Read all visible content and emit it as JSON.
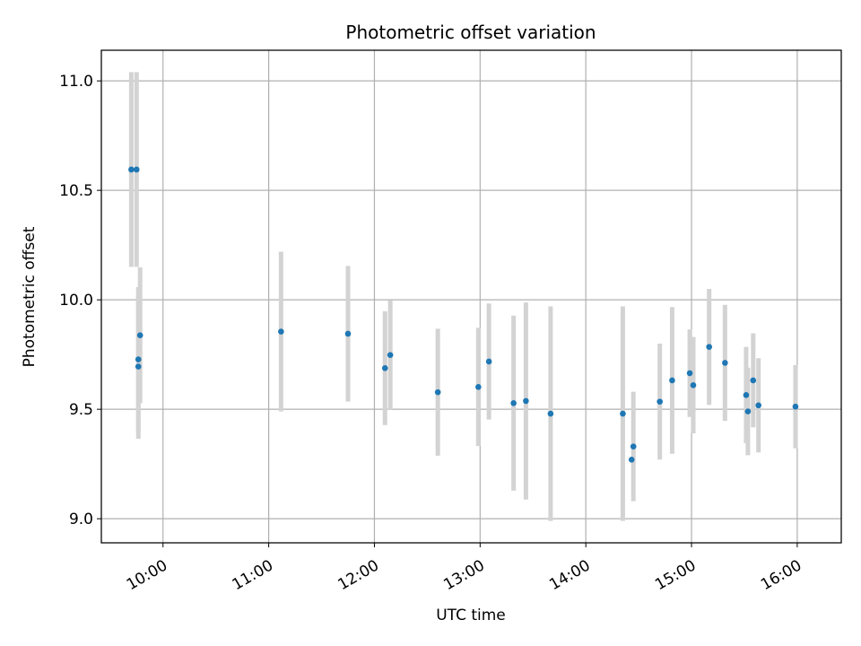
{
  "chart_data": {
    "type": "scatter",
    "title": "Photometric offset variation",
    "xlabel": "UTC time",
    "ylabel": "Photometric offset",
    "x_tick_labels": [
      "10:00",
      "11:00",
      "12:00",
      "13:00",
      "14:00",
      "15:00",
      "16:00"
    ],
    "y_tick_labels": [
      "9.0",
      "9.5",
      "10.0",
      "10.5",
      "11.0"
    ],
    "xlim": [
      "09:25",
      "16:25"
    ],
    "ylim": [
      8.89,
      11.14
    ],
    "grid": true,
    "colors": {
      "points": "#1f77b4",
      "errorbars": "#d3d3d3",
      "grid": "#b0b0b0"
    },
    "points": [
      {
        "x": "09:42",
        "y": 10.595,
        "err": 0.445
      },
      {
        "x": "09:45",
        "y": 10.595,
        "err": 0.445
      },
      {
        "x": "09:46",
        "y": 9.695,
        "err": 0.33
      },
      {
        "x": "09:46",
        "y": 9.728,
        "err": 0.33
      },
      {
        "x": "09:47",
        "y": 9.838,
        "err": 0.31
      },
      {
        "x": "11:07",
        "y": 9.855,
        "err": 0.365
      },
      {
        "x": "11:45",
        "y": 9.845,
        "err": 0.31
      },
      {
        "x": "12:06",
        "y": 9.688,
        "err": 0.26
      },
      {
        "x": "12:09",
        "y": 9.748,
        "err": 0.25
      },
      {
        "x": "12:36",
        "y": 9.578,
        "err": 0.29
      },
      {
        "x": "12:59",
        "y": 9.602,
        "err": 0.27
      },
      {
        "x": "13:05",
        "y": 9.718,
        "err": 0.265
      },
      {
        "x": "13:19",
        "y": 9.528,
        "err": 0.4
      },
      {
        "x": "13:26",
        "y": 9.538,
        "err": 0.45
      },
      {
        "x": "13:40",
        "y": 9.48,
        "err": 0.49
      },
      {
        "x": "14:21",
        "y": 9.48,
        "err": 0.49
      },
      {
        "x": "14:26",
        "y": 9.27,
        "err": 0.0
      },
      {
        "x": "14:27",
        "y": 9.33,
        "err": 0.25
      },
      {
        "x": "14:42",
        "y": 9.535,
        "err": 0.265
      },
      {
        "x": "14:49",
        "y": 9.632,
        "err": 0.335
      },
      {
        "x": "14:59",
        "y": 9.665,
        "err": 0.2
      },
      {
        "x": "15:01",
        "y": 9.61,
        "err": 0.22
      },
      {
        "x": "15:10",
        "y": 9.785,
        "err": 0.265
      },
      {
        "x": "15:19",
        "y": 9.712,
        "err": 0.265
      },
      {
        "x": "15:31",
        "y": 9.565,
        "err": 0.22
      },
      {
        "x": "15:32",
        "y": 9.49,
        "err": 0.2
      },
      {
        "x": "15:35",
        "y": 9.632,
        "err": 0.215
      },
      {
        "x": "15:38",
        "y": 9.518,
        "err": 0.215
      },
      {
        "x": "15:59",
        "y": 9.512,
        "err": 0.19
      }
    ]
  }
}
